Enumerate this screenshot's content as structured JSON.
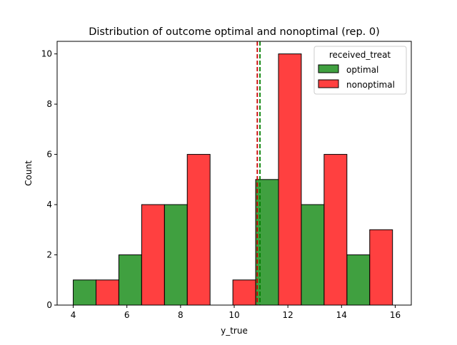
{
  "chart_data": {
    "type": "bar",
    "title": "Distribution of outcome optimal and nonoptimal (rep. 0)",
    "xlabel": "y_true",
    "ylabel": "Count",
    "xlim": [
      3.4,
      16.6
    ],
    "ylim": [
      0,
      10.5
    ],
    "xticks": [
      4,
      6,
      8,
      10,
      12,
      14,
      16
    ],
    "yticks": [
      0,
      2,
      4,
      6,
      8,
      10
    ],
    "grid": false,
    "legend": {
      "title": "received_treat",
      "placement": "top-right"
    },
    "bins": [
      [
        4.0,
        4.8
      ],
      [
        4.8,
        5.6
      ],
      [
        5.6,
        6.5
      ],
      [
        6.5,
        7.3
      ],
      [
        7.3,
        8.2
      ],
      [
        8.2,
        9.0
      ],
      [
        9.0,
        9.9
      ],
      [
        9.9,
        10.7
      ],
      [
        10.7,
        11.6
      ],
      [
        11.6,
        12.4
      ],
      [
        12.4,
        13.3
      ],
      [
        13.3,
        14.1
      ],
      [
        14.1,
        15.0
      ],
      [
        15.0,
        15.8
      ]
    ],
    "series": [
      {
        "name": "optimal",
        "color": "#008000",
        "bars": [
          {
            "x0": 4.0,
            "x1": 4.85,
            "count": 1
          },
          {
            "x0": 5.7,
            "x1": 6.55,
            "count": 2
          },
          {
            "x0": 7.4,
            "x1": 8.25,
            "count": 4
          },
          {
            "x0": 10.8,
            "x1": 11.65,
            "count": 5
          },
          {
            "x0": 12.5,
            "x1": 13.35,
            "count": 4
          },
          {
            "x0": 14.2,
            "x1": 15.05,
            "count": 2
          }
        ]
      },
      {
        "name": "nonoptimal",
        "color": "#ff0000",
        "bars": [
          {
            "x0": 4.85,
            "x1": 5.7,
            "count": 1
          },
          {
            "x0": 6.55,
            "x1": 7.4,
            "count": 4
          },
          {
            "x0": 8.25,
            "x1": 9.1,
            "count": 6
          },
          {
            "x0": 9.95,
            "x1": 10.8,
            "count": 1
          },
          {
            "x0": 11.65,
            "x1": 12.5,
            "count": 10
          },
          {
            "x0": 13.35,
            "x1": 14.2,
            "count": 6
          },
          {
            "x0": 15.05,
            "x1": 15.9,
            "count": 3
          }
        ]
      }
    ],
    "mean_lines": [
      {
        "series": "nonoptimal",
        "x": 10.86,
        "color": "#cc0000",
        "style": "dashed"
      },
      {
        "series": "optimal",
        "x": 10.96,
        "color": "#008000",
        "style": "dashed"
      }
    ]
  }
}
